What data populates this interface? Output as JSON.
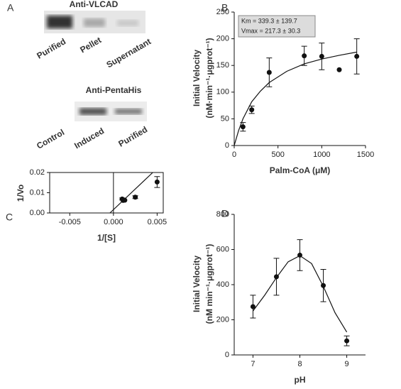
{
  "panels": [
    "A",
    "B",
    "C",
    "D"
  ],
  "blots": [
    {
      "title": "Anti-VLCAD",
      "lanes": [
        "Purified",
        "Pellet",
        "Supernatant"
      ]
    },
    {
      "title": "Anti-PentaHis",
      "lanes": [
        "Control",
        "Induced",
        "Purified"
      ]
    }
  ],
  "chart_data": [
    {
      "type": "scatter",
      "x_label": "Palm-CoA (μM)",
      "y_label": [
        "Initial Velocity",
        "(nM·min⁻¹·μgprot⁻¹)"
      ],
      "annotations": [
        "Km = 339.3 ± 139.7",
        "Vmax = 217.3 ± 30.3"
      ],
      "x": [
        100,
        200,
        400,
        800,
        1000,
        1200,
        1400
      ],
      "values": [
        35,
        67,
        137,
        168,
        167,
        142,
        167
      ],
      "errors": [
        8,
        7,
        27,
        18,
        25,
        null,
        33
      ],
      "fit": {
        "x": [
          0,
          50,
          100,
          200,
          300,
          400,
          600,
          800,
          1000,
          1200,
          1400
        ],
        "values": [
          0,
          28,
          50,
          82,
          102,
          118,
          139,
          153,
          162,
          169,
          175
        ]
      },
      "color": "#111",
      "frame": "axes",
      "xlim": [
        0,
        1500
      ],
      "xticks": [
        0,
        500,
        1000,
        1500
      ],
      "ylim": [
        0,
        250
      ],
      "yticks": [
        0,
        50,
        100,
        150,
        200,
        250
      ]
    },
    {
      "type": "scatter",
      "x_label": "1/[S]",
      "y_label": [
        "1/Vo"
      ],
      "x": [
        0.001,
        0.0011,
        0.0013,
        0.0025,
        0.005
      ],
      "values": [
        0.0069,
        0.0062,
        0.0063,
        0.0078,
        0.0153
      ],
      "errors": [
        0.0005,
        null,
        null,
        0.0007,
        0.0027
      ],
      "fit": {
        "x": [
          -0.0004,
          0.0045
        ],
        "values": [
          0,
          0.02
        ]
      },
      "reference_lines": [
        0
      ],
      "color": "#111",
      "frame": "box",
      "xlim": [
        -0.0073,
        0.0057
      ],
      "xticks": [
        {
          "value": -0.005,
          "label": "-0.005"
        },
        {
          "value": 0,
          "label": "0.000"
        },
        {
          "value": 0.005,
          "label": "0.005"
        }
      ],
      "ylim": [
        0,
        0.02
      ],
      "yticks": [
        {
          "value": 0,
          "label": "0.00"
        },
        {
          "value": 0.01,
          "label": "0.01"
        },
        {
          "value": 0.02,
          "label": "0.02"
        }
      ]
    },
    {
      "type": "scatter",
      "x_label": "pH",
      "y_label": [
        "Initial Velocity",
        "(nM min⁻¹·μgprot⁻¹)"
      ],
      "x": [
        7,
        7.5,
        8,
        8.5,
        9
      ],
      "values": [
        275,
        445,
        568,
        395,
        80
      ],
      "errors": [
        65,
        105,
        88,
        92,
        28
      ],
      "fit": {
        "x": [
          7,
          7.25,
          7.5,
          7.75,
          8,
          8.25,
          8.5,
          8.75,
          9
        ],
        "values": [
          250,
          340,
          440,
          530,
          565,
          520,
          390,
          240,
          130
        ]
      },
      "color": "#111",
      "frame": "axes",
      "xlim": [
        6.6,
        9.4
      ],
      "xticks": [
        7,
        8,
        9
      ],
      "ylim": [
        0,
        800
      ],
      "yticks": [
        0,
        200,
        400,
        600,
        800
      ]
    }
  ]
}
